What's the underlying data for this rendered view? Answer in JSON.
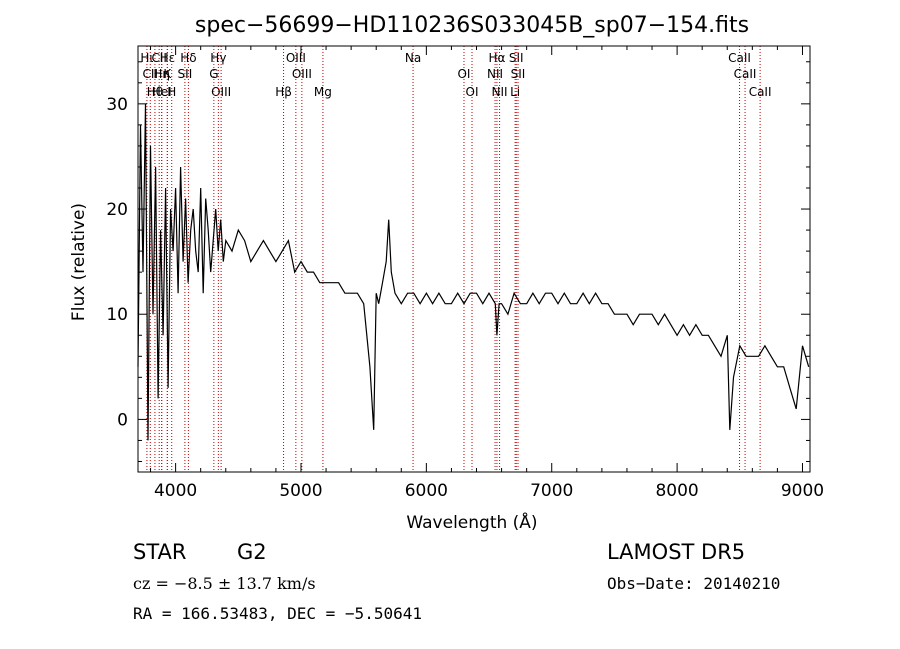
{
  "chart_data": {
    "type": "line",
    "title": "spec−56699−HD110236S033045B_sp07−154.fits",
    "xlabel": "Wavelength (Å)",
    "ylabel": "Flux (relative)",
    "xlim": [
      3700,
      9060
    ],
    "ylim": [
      -5,
      35.5
    ],
    "xticks": [
      4000,
      5000,
      6000,
      7000,
      8000,
      9000
    ],
    "yticks": [
      0,
      10,
      20,
      30
    ],
    "grid": false,
    "line_color": "#000000",
    "marker_color": "#c00000",
    "series": [
      {
        "x": [
          3700,
          3720,
          3740,
          3760,
          3780,
          3800,
          3820,
          3840,
          3860,
          3880,
          3900,
          3920,
          3940,
          3960,
          3980,
          4000,
          4020,
          4040,
          4060,
          4080,
          4100,
          4120,
          4140,
          4160,
          4180,
          4200,
          4220,
          4240,
          4260,
          4280,
          4300,
          4320,
          4340,
          4360,
          4380,
          4400,
          4450,
          4500,
          4550,
          4600,
          4650,
          4700,
          4750,
          4800,
          4850,
          4900,
          4950,
          5000,
          5050,
          5100,
          5150,
          5200,
          5250,
          5300,
          5350,
          5400,
          5450,
          5500,
          5550,
          5580,
          5600,
          5620,
          5650,
          5680,
          5700,
          5720,
          5750,
          5800,
          5850,
          5900,
          5950,
          6000,
          6050,
          6100,
          6150,
          6200,
          6250,
          6300,
          6350,
          6400,
          6450,
          6500,
          6550,
          6563,
          6580,
          6600,
          6650,
          6700,
          6750,
          6800,
          6850,
          6900,
          6950,
          7000,
          7050,
          7100,
          7150,
          7200,
          7250,
          7300,
          7350,
          7400,
          7450,
          7500,
          7550,
          7600,
          7650,
          7700,
          7750,
          7800,
          7850,
          7900,
          7950,
          8000,
          8050,
          8100,
          8150,
          8200,
          8250,
          8300,
          8350,
          8400,
          8420,
          8450,
          8500,
          8550,
          8600,
          8650,
          8700,
          8750,
          8800,
          8850,
          8900,
          8950,
          9000,
          9050
        ],
        "y": [
          5,
          28,
          14,
          30,
          -2,
          26,
          10,
          24,
          2,
          18,
          8,
          22,
          3,
          20,
          16,
          22,
          12,
          24,
          15,
          21,
          13,
          18,
          20,
          16,
          14,
          22,
          12,
          21,
          18,
          14,
          17,
          20,
          16,
          19,
          15,
          17,
          16,
          18,
          17,
          15,
          16,
          17,
          16,
          15,
          16,
          17,
          14,
          15,
          14,
          14,
          13,
          13,
          13,
          13,
          12,
          12,
          12,
          11,
          5,
          -1,
          12,
          11,
          13,
          15,
          19,
          14,
          12,
          11,
          12,
          12,
          11,
          12,
          11,
          12,
          11,
          11,
          12,
          11,
          12,
          12,
          11,
          12,
          11,
          8,
          11,
          11,
          10,
          12,
          11,
          11,
          12,
          11,
          12,
          12,
          11,
          12,
          11,
          11,
          12,
          11,
          12,
          11,
          11,
          10,
          10,
          10,
          9,
          10,
          10,
          10,
          9,
          10,
          9,
          8,
          9,
          8,
          9,
          8,
          8,
          7,
          6,
          8,
          -1,
          4,
          7,
          6,
          6,
          6,
          7,
          6,
          5,
          5,
          3,
          1,
          7,
          5
        ]
      }
    ],
    "lines": [
      {
        "name": "Hι",
        "wl": 3771
      },
      {
        "name": "CII",
        "wl": 3798
      },
      {
        "name": "Hθ",
        "wl": 3835
      },
      {
        "name": "CII",
        "wl": 3869
      },
      {
        "name": "Hη",
        "wl": 3889
      },
      {
        "name": "HeI",
        "wl": 3889
      },
      {
        "name": "Hε",
        "wl": 3934
      },
      {
        "name": "K",
        "wl": 3934
      },
      {
        "name": "H",
        "wl": 3969
      },
      {
        "name": "Hδ",
        "wl": 4102
      },
      {
        "name": "SII",
        "wl": 4074
      },
      {
        "name": "OIII",
        "wl": 4363
      },
      {
        "name": "Hγ",
        "wl": 4341
      },
      {
        "name": "G",
        "wl": 4305
      },
      {
        "name": "Hβ",
        "wl": 4861
      },
      {
        "name": "OIII",
        "wl": 4959
      },
      {
        "name": "OIII",
        "wl": 5007
      },
      {
        "name": "Mg",
        "wl": 5175
      },
      {
        "name": "Na",
        "wl": 5894
      },
      {
        "name": "OI",
        "wl": 6300
      },
      {
        "name": "OI",
        "wl": 6364
      },
      {
        "name": "Hα",
        "wl": 6563
      },
      {
        "name": "NII",
        "wl": 6548
      },
      {
        "name": "NII",
        "wl": 6584
      },
      {
        "name": "SII",
        "wl": 6717
      },
      {
        "name": "SII",
        "wl": 6731
      },
      {
        "name": "Li",
        "wl": 6708
      },
      {
        "name": "CaII",
        "wl": 8498
      },
      {
        "name": "CaII",
        "wl": 8542
      },
      {
        "name": "CaII",
        "wl": 8662
      }
    ]
  },
  "info": {
    "class": "STAR",
    "subclass": "G2",
    "survey": "LAMOST DR5",
    "cz": "cz = −8.5 ± 13.7 km/s",
    "obs_date": "Obs−Date: 20140210",
    "radec": "RA = 166.53483, DEC =  −5.50641"
  }
}
